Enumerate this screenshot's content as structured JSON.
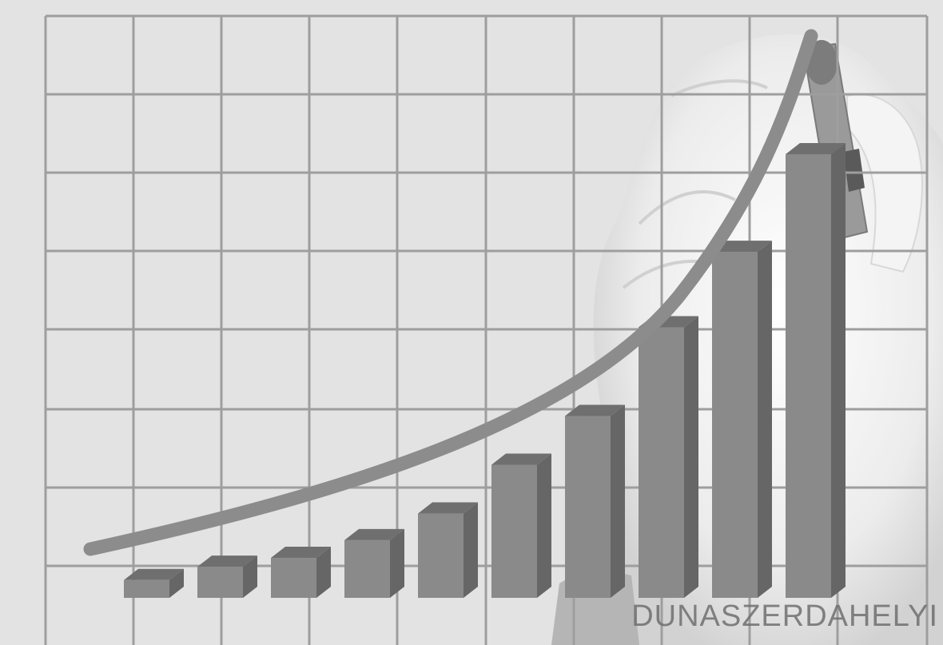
{
  "scene": {
    "description_icon": "growth-chart-with-hand-drawing-curve",
    "colors": {
      "background": "#e3e3e3",
      "grid": "#9e9e9e",
      "bar_front": "#8a8a8a",
      "bar_top": "#6f6f6f",
      "bar_side": "#666666",
      "curve": "#8c8c8c",
      "hand": "#f2f2f2",
      "marker": "#8a8a8a"
    },
    "bar_levels": [
      0.04,
      0.07,
      0.09,
      0.13,
      0.19,
      0.3,
      0.41,
      0.61,
      0.78,
      1.0
    ]
  },
  "watermark": {
    "text": "DUNASZERDAHELYI"
  }
}
